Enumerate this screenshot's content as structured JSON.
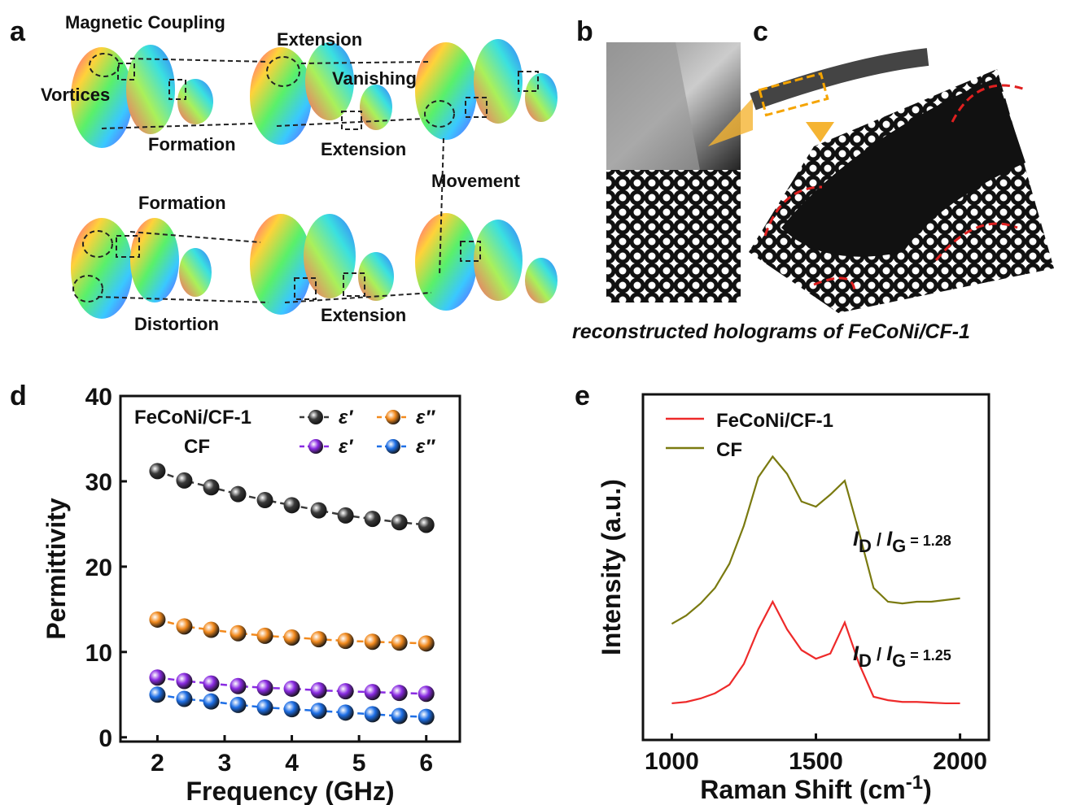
{
  "panels": {
    "labels": [
      "a",
      "b",
      "c",
      "d",
      "e"
    ],
    "a_annotations": [
      "Magnetic Coupling",
      "Extension",
      "Vanishing",
      "Vortices",
      "Formation",
      "Extension",
      "Movement",
      "Formation",
      "Distortion",
      "Extension"
    ],
    "caption": "reconstructed holograms of FeCoNi/CF-1"
  },
  "chart_data": [
    {
      "type": "line",
      "markers": true,
      "x": [
        2,
        2.4,
        2.8,
        3.2,
        3.6,
        4,
        4.4,
        4.8,
        5.2,
        5.6,
        6
      ],
      "legend_groups": [
        "FeCoNi/CF-1",
        "CF"
      ],
      "series": [
        {
          "name": "ε′",
          "color": "#3a3a3a",
          "values": [
            31.2,
            30.1,
            29.3,
            28.5,
            27.8,
            27.2,
            26.6,
            26.0,
            25.6,
            25.2,
            24.9
          ]
        },
        {
          "name": "ε″",
          "color": "#f28a1e",
          "values": [
            13.8,
            13.0,
            12.6,
            12.2,
            11.9,
            11.7,
            11.5,
            11.3,
            11.2,
            11.1,
            11.0
          ]
        },
        {
          "name": "ε′",
          "color": "#8a2be2",
          "values": [
            7.0,
            6.6,
            6.3,
            6.0,
            5.8,
            5.7,
            5.5,
            5.4,
            5.3,
            5.2,
            5.1
          ]
        },
        {
          "name": "ε″",
          "color": "#1e6fe6",
          "values": [
            5.0,
            4.5,
            4.2,
            3.8,
            3.5,
            3.3,
            3.1,
            2.9,
            2.7,
            2.5,
            2.4
          ]
        }
      ],
      "xlim": [
        1.45,
        6.5
      ],
      "xticks": [
        2,
        3,
        4,
        5,
        6
      ],
      "ylim": [
        -0.5,
        40
      ],
      "yticks": [
        0,
        10,
        20,
        30,
        40
      ],
      "xlabel": "Frequency (GHz)",
      "ylabel": "Permittivity"
    },
    {
      "type": "line",
      "markers": false,
      "x": [
        1000,
        1050,
        1100,
        1150,
        1200,
        1250,
        1300,
        1350,
        1400,
        1450,
        1500,
        1550,
        1600,
        1650,
        1700,
        1750,
        1800,
        1850,
        1900,
        1950,
        2000
      ],
      "series": [
        {
          "name": "FeCoNi/CF-1",
          "color": "#ee2a2a",
          "values": [
            10.6,
            11,
            12,
            13.5,
            16,
            22,
            32,
            40,
            32,
            26,
            23.5,
            25,
            34,
            22,
            12.5,
            11.5,
            11,
            11,
            10.8,
            10.6,
            10.6
          ]
        },
        {
          "name": "CF",
          "color": "#7a7a10",
          "values": [
            33.6,
            36,
            39.5,
            44,
            51,
            62,
            76,
            82,
            77,
            69,
            67.5,
            71,
            75,
            60,
            44,
            40,
            39.5,
            40,
            40,
            40.5,
            41
          ]
        }
      ],
      "xlim": [
        900,
        2100
      ],
      "xticks": [
        1000,
        1500,
        2000
      ],
      "ylim": [
        0,
        100
      ],
      "xlabel": "Raman Shift (",
      "xlabel_unit": "cm",
      "xlabel_sup": "-1",
      "xlabel_end": ")",
      "ylabel": "Intensity (a.u.)",
      "annotations": [
        [
          "I",
          "D",
          " / ",
          "I",
          "G",
          " = 1.28"
        ],
        [
          "I",
          "D",
          " / ",
          "I",
          "G",
          " = 1.25"
        ]
      ]
    }
  ]
}
